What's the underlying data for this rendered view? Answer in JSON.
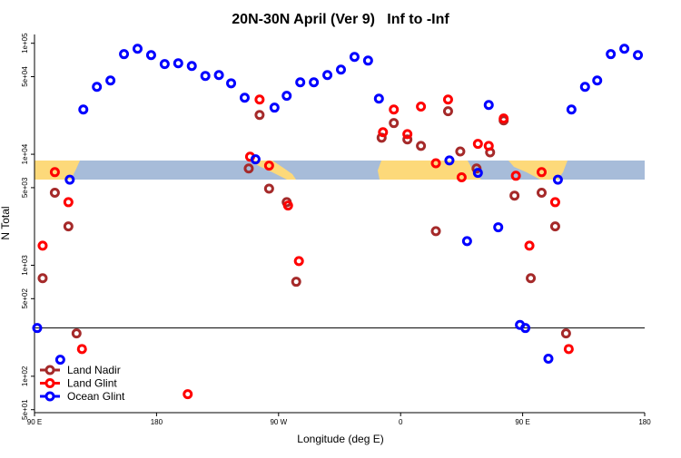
{
  "chart_data": {
    "type": "scatter",
    "title": "20N-30N April (Ver 9)   Inf to -Inf",
    "x_label": "Longitude (deg E)",
    "y_label": "N Total",
    "log_y": true,
    "legend": "lower left",
    "xlim": [
      90,
      540
    ],
    "xticks": [
      {
        "value": 90,
        "label": "90 E"
      },
      {
        "value": 180,
        "label": "180"
      },
      {
        "value": 270,
        "label": "90 W"
      },
      {
        "value": 360,
        "label": "0"
      },
      {
        "value": 450,
        "label": "90 E"
      },
      {
        "value": 540,
        "label": "180"
      }
    ],
    "ylim": [
      47,
      120000
    ],
    "yticks": [
      {
        "value": 50,
        "label": "5e+01"
      },
      {
        "value": 100,
        "label": "1e+02"
      },
      {
        "value": 500,
        "label": "5e+02"
      },
      {
        "value": 1000,
        "label": "1e+03"
      },
      {
        "value": 5000,
        "label": "5e+03"
      },
      {
        "value": 10000,
        "label": "1e+04"
      },
      {
        "value": 50000,
        "label": "5e+04"
      },
      {
        "value": 100000,
        "label": "1e+05"
      }
    ],
    "hline": 272,
    "series": [
      {
        "name": "Land Nadir",
        "color": "#a52a2a",
        "x": [
          96,
          105,
          115,
          121,
          248,
          256,
          263,
          276,
          283,
          346,
          355,
          365,
          375,
          386,
          395,
          404,
          416,
          426,
          436,
          444,
          456,
          464,
          474,
          482
        ],
        "values": [
          765,
          4500,
          2240,
          243,
          7450,
          22600,
          4900,
          3700,
          710,
          14100,
          19100,
          13600,
          11900,
          2030,
          24400,
          10600,
          7450,
          10400,
          20200,
          4240,
          765,
          4500,
          2240,
          243
        ]
      },
      {
        "name": "Land Glint",
        "color": "#ff0000",
        "x": [
          105,
          96,
          115,
          125,
          203,
          249,
          256,
          263,
          277,
          285,
          347,
          355,
          365,
          375,
          386,
          395,
          405,
          417,
          425,
          436,
          445,
          455,
          464,
          474,
          484
        ],
        "values": [
          6900,
          1500,
          3700,
          176,
          69,
          9500,
          31100,
          7900,
          3450,
          1090,
          15800,
          25300,
          15200,
          26900,
          8300,
          31100,
          6200,
          12400,
          11900,
          21000,
          6400,
          1500,
          6900,
          3700,
          176
        ]
      },
      {
        "name": "Ocean Glint",
        "color": "#0000ff",
        "x": [
          92,
          109,
          116,
          126,
          136,
          146,
          156,
          166,
          176,
          186,
          196,
          206,
          216,
          226,
          235,
          245,
          253,
          267,
          276,
          286,
          296,
          306,
          316,
          326,
          336,
          344,
          396,
          409,
          417,
          425,
          432,
          448,
          452,
          469,
          476,
          486,
          496,
          505,
          515,
          525,
          535
        ],
        "values": [
          272,
          141,
          5900,
          25300,
          40500,
          46200,
          79800,
          89300,
          78200,
          64900,
          66000,
          62400,
          50800,
          51700,
          43600,
          32300,
          9000,
          26300,
          33600,
          44500,
          44500,
          51700,
          57900,
          75300,
          69800,
          31700,
          8800,
          1650,
          6800,
          27800,
          2200,
          290,
          272,
          144,
          5900,
          25300,
          40500,
          46200,
          79800,
          89300,
          78200
        ]
      }
    ]
  }
}
